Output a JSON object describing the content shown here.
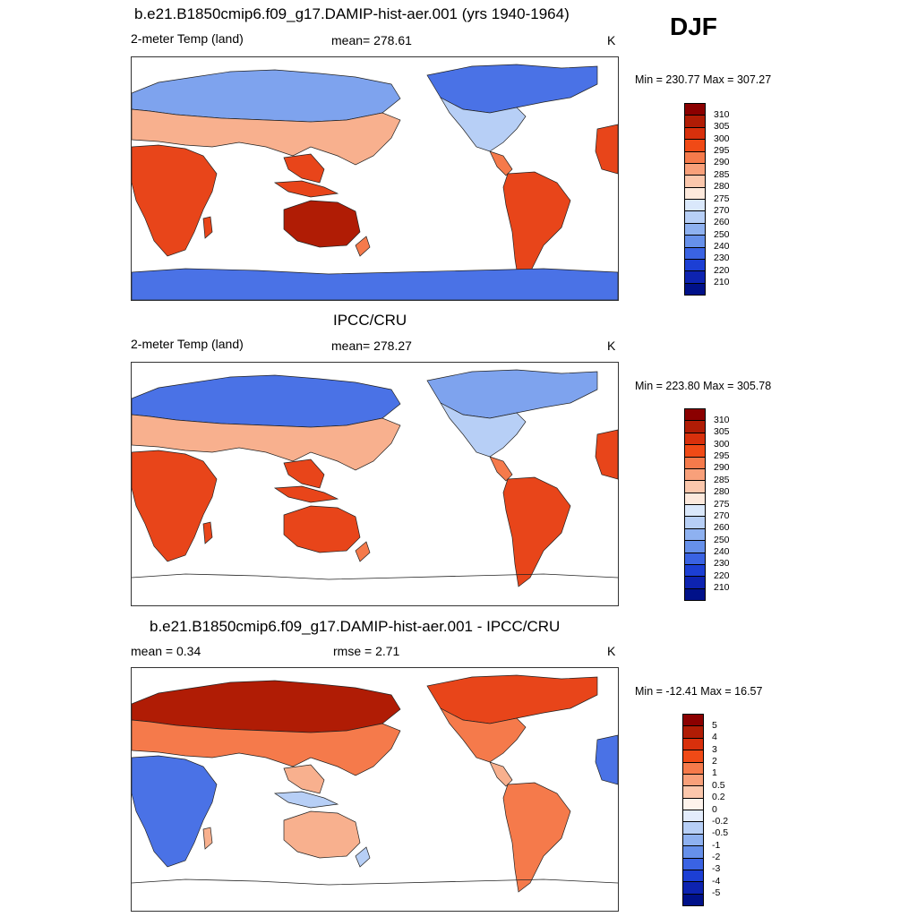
{
  "season": "DJF",
  "panels": [
    {
      "title": "b.e21.B1850cmip6.f09_g17.DAMIP-hist-aer.001 (yrs 1940-1964)",
      "left_label": "2-meter Temp (land)",
      "center_label": "mean= 278.61",
      "units": "K",
      "minmax": "Min = 230.77 Max = 307.27",
      "variant": "model"
    },
    {
      "title": "IPCC/CRU",
      "left_label": "2-meter Temp (land)",
      "center_label": "mean= 278.27",
      "units": "K",
      "minmax": "Min = 223.80 Max = 305.78",
      "variant": "obs"
    },
    {
      "title": "b.e21.B1850cmip6.f09_g17.DAMIP-hist-aer.001 - IPCC/CRU",
      "left_label": "mean =   0.34",
      "center_label": "rmse =   2.71",
      "units": "K",
      "minmax": "Min = -12.41 Max =  16.57",
      "variant": "diff"
    }
  ],
  "colorbar_abs": {
    "labels": [
      "310",
      "305",
      "300",
      "295",
      "290",
      "285",
      "280",
      "275",
      "270",
      "260",
      "250",
      "240",
      "230",
      "220",
      "210"
    ],
    "colors": [
      "#8b0000",
      "#b01c05",
      "#d8300c",
      "#f04a16",
      "#f57a4b",
      "#f8a07a",
      "#fbc7ac",
      "#fde9dc",
      "#dae8fb",
      "#b7cff6",
      "#8eb1f0",
      "#6690ea",
      "#3a63e3",
      "#1c3fd4",
      "#0d23b0",
      "#001189"
    ]
  },
  "colorbar_diff": {
    "labels": [
      "5",
      "4",
      "3",
      "2",
      "1",
      "0.5",
      "0.2",
      "0",
      "-0.2",
      "-0.5",
      "-1",
      "-2",
      "-3",
      "-4",
      "-5"
    ],
    "colors": [
      "#8b0000",
      "#b01c05",
      "#d8300c",
      "#f04a16",
      "#f57a4b",
      "#f8a07a",
      "#fbc7ac",
      "#fef3ec",
      "#e3ecfc",
      "#b7cff6",
      "#8eb1f0",
      "#6690ea",
      "#3a63e3",
      "#1c3fd4",
      "#0d23b0",
      "#001189"
    ]
  },
  "map_colors": {
    "deep_red": "#b01c05",
    "red": "#e8451a",
    "orange": "#f57a4b",
    "peach": "#f8b08e",
    "pale": "#fde9dc",
    "light_blue": "#b7cff6",
    "mid_blue": "#7ea3ee",
    "blue": "#4a72e6",
    "deep_blue": "#1c3fd4"
  }
}
